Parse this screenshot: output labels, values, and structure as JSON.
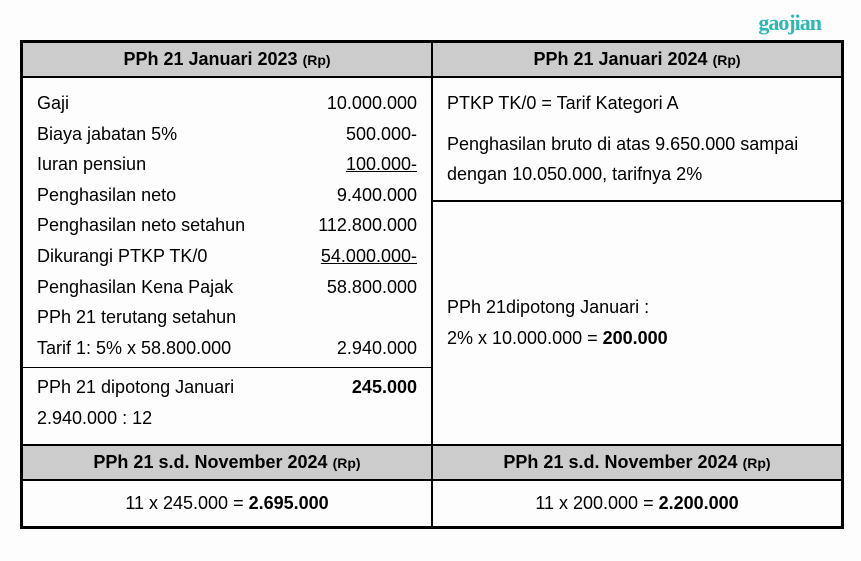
{
  "logo": "gaojian",
  "left": {
    "header": "PPh 21 Januari 2023",
    "header_unit": "(Rp)",
    "rows": [
      {
        "label": "Gaji",
        "value": "10.000.000",
        "underline": false
      },
      {
        "label": "Biaya jabatan 5%",
        "value": "500.000-",
        "underline": false
      },
      {
        "label": "Iuran pensiun",
        "value": "100.000-",
        "underline": true
      },
      {
        "label": "Penghasilan neto",
        "value": "9.400.000",
        "underline": false
      },
      {
        "label": "Penghasilan neto setahun",
        "value": "112.800.000",
        "underline": false
      },
      {
        "label": "Dikurangi PTKP TK/0",
        "value": "54.000.000-",
        "underline": true
      },
      {
        "label": "Penghasilan Kena Pajak",
        "value": "58.800.000",
        "underline": false
      },
      {
        "label": "PPh 21 terutang setahun",
        "value": "",
        "underline": false
      },
      {
        "label": "Tarif 1: 5% x 58.800.000",
        "value": "2.940.000",
        "underline": false
      }
    ],
    "result_label_1": "PPh 21 dipotong Januari",
    "result_label_2": "2.940.000 : 12",
    "result_value": "245.000"
  },
  "right": {
    "header": "PPh 21 Januari 2024",
    "header_unit": "(Rp)",
    "top_line_1": "PTKP TK/0 = Tarif Kategori A",
    "top_line_2": "Penghasilan bruto di atas 9.650.000 sampai dengan 10.050.000, tarifnya 2%",
    "bot_label": "PPh 21dipotong Januari :",
    "bot_calc_prefix": "2% x 10.000.000 = ",
    "bot_calc_result": "200.000"
  },
  "footer_left": {
    "header": "PPh 21 s.d. November 2024",
    "header_unit": "(Rp)",
    "calc_prefix": "11 x 245.000 = ",
    "calc_result": "2.695.000"
  },
  "footer_right": {
    "header": "PPh 21 s.d. November 2024",
    "header_unit": "(Rp)",
    "calc_prefix": "11 x 200.000 = ",
    "calc_result": "2.200.000"
  },
  "style": {
    "header_bg": "#cccccc",
    "border_color": "#000000",
    "font_size_body": 18,
    "font_size_header": 18,
    "logo_color": "#2fb8b3"
  }
}
